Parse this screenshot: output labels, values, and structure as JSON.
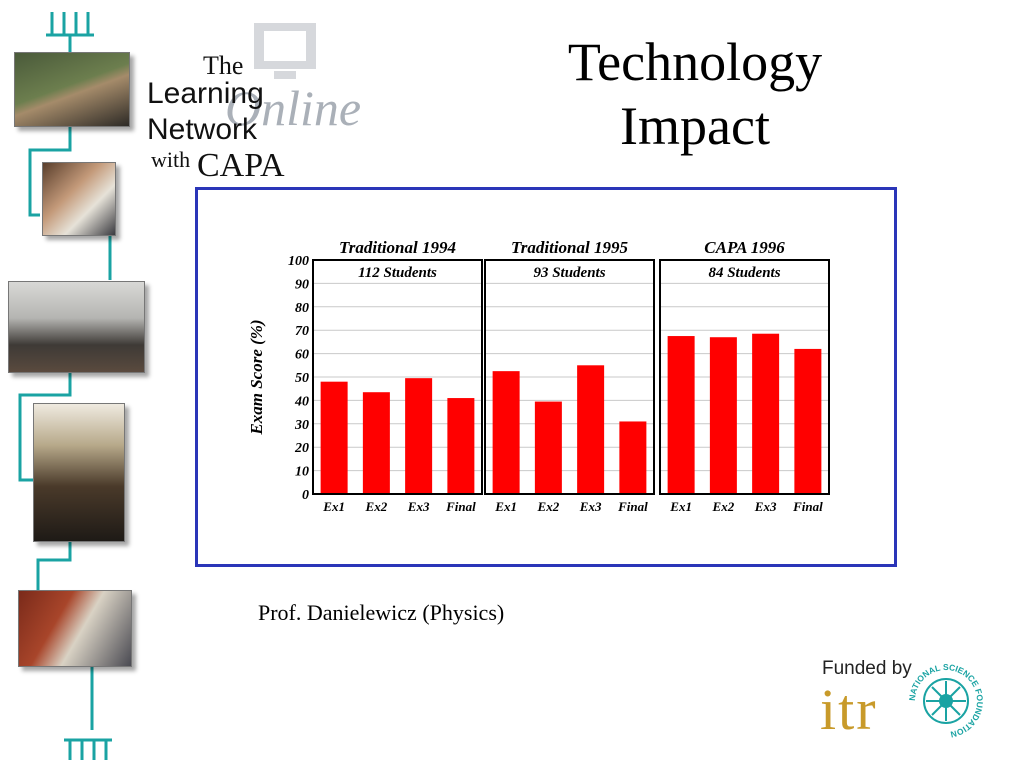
{
  "slide": {
    "title_line1": "Technology",
    "title_line2": "Impact",
    "caption": "Prof. Danielewicz (Physics)",
    "funded_label": "Funded by",
    "funder_logo_text": "itr",
    "nsf_seal_text": "NATIONAL SCIENCE FOUNDATION"
  },
  "logo": {
    "the": "The",
    "learning": "Learning",
    "network": "Network",
    "with": "with",
    "capa": "CAPA",
    "online": "Online"
  },
  "colors": {
    "bar": "#ff0000",
    "frame": "#2a35b8",
    "rail": "#1aa3a3",
    "logo_gold": "#c89a2a",
    "nsf": "#1aa3a3"
  },
  "chart_data": {
    "type": "bar",
    "ylabel": "Exam Score (%)",
    "ylim": [
      0,
      100
    ],
    "yticks": [
      0,
      10,
      20,
      30,
      40,
      50,
      60,
      70,
      80,
      90,
      100
    ],
    "grid": true,
    "panels": [
      {
        "title": "Traditional 1994",
        "subtitle": "112 Students",
        "categories": [
          "Ex1",
          "Ex2",
          "Ex3",
          "Final"
        ],
        "values": [
          48,
          43.5,
          49.5,
          41
        ]
      },
      {
        "title": "Traditional 1995",
        "subtitle": "93 Students",
        "categories": [
          "Ex1",
          "Ex2",
          "Ex3",
          "Final"
        ],
        "values": [
          52.5,
          39.5,
          55,
          31
        ]
      },
      {
        "title": "CAPA 1996",
        "subtitle": "84 Students",
        "categories": [
          "Ex1",
          "Ex2",
          "Ex3",
          "Final"
        ],
        "values": [
          67.5,
          67,
          68.5,
          62
        ]
      }
    ]
  }
}
